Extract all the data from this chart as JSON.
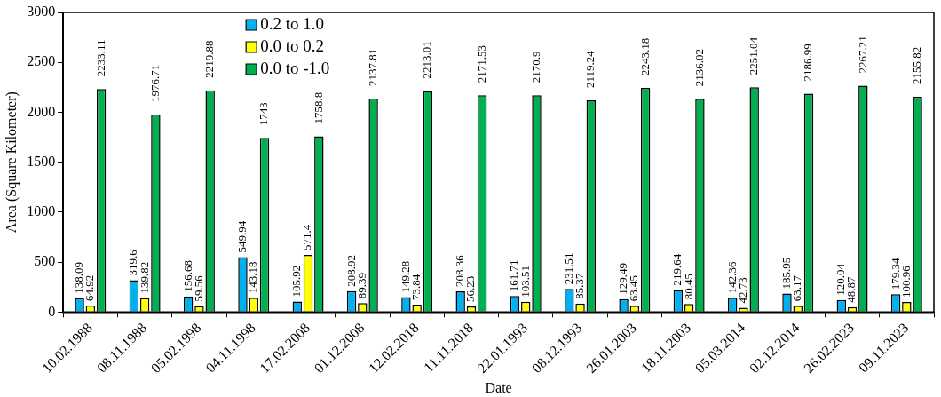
{
  "chart_data": {
    "type": "bar",
    "xlabel": "Date",
    "ylabel": "Area (Square Kilometer)",
    "categories": [
      "10.02.1988",
      "08.11.1988",
      "05.02.1998",
      "04.11.1998",
      "17.02.2008",
      "01.12.2008",
      "12.02.2018",
      "11.11.2018",
      "22.01.1993",
      "08.12.1993",
      "26.01.2003",
      "18.11.2003",
      "05.03.2014",
      "02.12.2014",
      "26.02.2023",
      "09.11.2023"
    ],
    "series": [
      {
        "name": "0.2 to 1.0",
        "color": "#00b0f0",
        "values": [
          138.09,
          319.6,
          156.68,
          549.94,
          105.92,
          208.92,
          149.28,
          208.36,
          161.71,
          231.51,
          129.49,
          219.64,
          142.36,
          185.95,
          120.04,
          179.34
        ]
      },
      {
        "name": "0.0 to 0.2",
        "color": "#ffff00",
        "values": [
          64.92,
          139.82,
          59.56,
          143.18,
          571.4,
          89.39,
          73.84,
          56.23,
          103.51,
          85.37,
          63.45,
          80.45,
          42.73,
          63.17,
          48.87,
          100.96
        ]
      },
      {
        "name": "0.0 to -1.0",
        "color": "#00b050",
        "values": [
          2233.11,
          1976.71,
          2219.88,
          1743,
          1758.8,
          2137.81,
          2213.01,
          2171.53,
          2170.9,
          2119.24,
          2243.18,
          2136.02,
          2251.04,
          2186.99,
          2267.21,
          2155.82
        ]
      }
    ],
    "ylim": [
      0,
      3000
    ],
    "yticks": [
      0,
      500,
      1000,
      1500,
      2000,
      2500,
      3000
    ],
    "grid": false,
    "legend": "top",
    "data_labels": true
  }
}
